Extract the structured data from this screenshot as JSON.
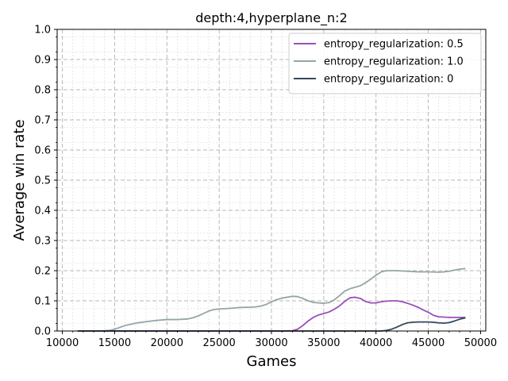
{
  "chart_data": {
    "type": "line",
    "title": "depth:4,hyperplane_n:2",
    "xlabel": "Games",
    "ylabel": "Average win rate",
    "xlim": [
      9500,
      50500
    ],
    "ylim": [
      0.0,
      1.0
    ],
    "xticks": [
      10000,
      15000,
      20000,
      25000,
      30000,
      35000,
      40000,
      45000,
      50000
    ],
    "xtick_labels": [
      "10000",
      "15000",
      "20000",
      "25000",
      "30000",
      "35000",
      "40000",
      "45000",
      "50000"
    ],
    "yticks": [
      0.0,
      0.1,
      0.2,
      0.3,
      0.4,
      0.5,
      0.6,
      0.7,
      0.8,
      0.9,
      1.0
    ],
    "ytick_labels": [
      "0.0",
      "0.1",
      "0.2",
      "0.3",
      "0.4",
      "0.5",
      "0.6",
      "0.7",
      "0.8",
      "0.9",
      "1.0"
    ],
    "grid": true,
    "legend_position": "top-right",
    "series": [
      {
        "name": "entropy_regularization: 0.5",
        "color": "#9b4fb5",
        "x": [
          11500,
          20000,
          31000,
          32000,
          32500,
          33000,
          33500,
          34000,
          34500,
          35000,
          35500,
          36000,
          36500,
          37000,
          37500,
          38000,
          38500,
          39000,
          39500,
          40000,
          40500,
          41000,
          41500,
          42000,
          42500,
          43000,
          43500,
          44000,
          44500,
          45000,
          45500,
          46000,
          46500,
          47000,
          47500,
          48000,
          48500
        ],
        "y": [
          0.0,
          0.0,
          0.0,
          0.001,
          0.006,
          0.018,
          0.033,
          0.045,
          0.053,
          0.058,
          0.063,
          0.072,
          0.083,
          0.098,
          0.11,
          0.112,
          0.108,
          0.098,
          0.093,
          0.093,
          0.097,
          0.099,
          0.1,
          0.1,
          0.097,
          0.092,
          0.086,
          0.079,
          0.07,
          0.062,
          0.052,
          0.047,
          0.046,
          0.045,
          0.045,
          0.045,
          0.045
        ]
      },
      {
        "name": "entropy_regularization: 1.0",
        "color": "#95a5a6",
        "x": [
          11500,
          13500,
          14500,
          15000,
          15500,
          16000,
          17000,
          18000,
          19000,
          20000,
          21000,
          22000,
          22500,
          23000,
          23500,
          24000,
          24500,
          25000,
          26000,
          27000,
          28000,
          28500,
          29000,
          29500,
          30000,
          30500,
          31000,
          31500,
          32000,
          32500,
          33000,
          33500,
          34000,
          34500,
          35000,
          35500,
          36000,
          36500,
          37000,
          37500,
          38000,
          38500,
          39000,
          39500,
          40000,
          40500,
          41000,
          41500,
          42000,
          43000,
          44000,
          45000,
          46000,
          46500,
          47000,
          47500,
          48000,
          48500
        ],
        "y": [
          0.0,
          0.0,
          0.002,
          0.006,
          0.012,
          0.018,
          0.026,
          0.031,
          0.035,
          0.038,
          0.038,
          0.04,
          0.044,
          0.05,
          0.058,
          0.066,
          0.071,
          0.073,
          0.075,
          0.078,
          0.079,
          0.08,
          0.083,
          0.088,
          0.097,
          0.104,
          0.109,
          0.112,
          0.115,
          0.114,
          0.108,
          0.1,
          0.095,
          0.093,
          0.092,
          0.094,
          0.103,
          0.117,
          0.132,
          0.14,
          0.145,
          0.15,
          0.16,
          0.172,
          0.185,
          0.196,
          0.2,
          0.2,
          0.2,
          0.198,
          0.196,
          0.196,
          0.195,
          0.196,
          0.198,
          0.202,
          0.205,
          0.207
        ]
      },
      {
        "name": "entropy_regularization: 0",
        "color": "#34495e",
        "x": [
          11500,
          20000,
          30000,
          40500,
          41000,
          41500,
          42000,
          42500,
          43000,
          43500,
          44000,
          44500,
          45000,
          45500,
          46000,
          46500,
          47000,
          47500,
          48000,
          48500
        ],
        "y": [
          0.0,
          0.0,
          0.0,
          0.0,
          0.002,
          0.006,
          0.013,
          0.021,
          0.027,
          0.029,
          0.03,
          0.03,
          0.03,
          0.029,
          0.027,
          0.026,
          0.028,
          0.033,
          0.039,
          0.043
        ]
      }
    ]
  }
}
